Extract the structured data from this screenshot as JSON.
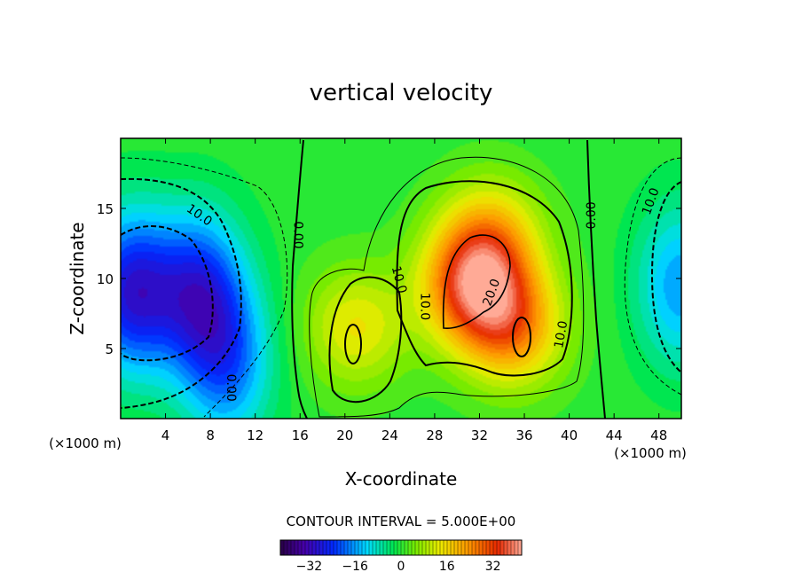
{
  "chart_data": {
    "type": "heatmap",
    "title": "vertical velocity",
    "xlabel": "X-coordinate",
    "ylabel": "Z-coordinate",
    "x_unit_left": "(×1000 m)",
    "x_unit_right": "(×1000 m)",
    "xlim": [
      0,
      50
    ],
    "ylim": [
      0,
      20
    ],
    "x_ticks": [
      {
        "value": 4,
        "label": "4"
      },
      {
        "value": 8,
        "label": "8"
      },
      {
        "value": 12,
        "label": "12"
      },
      {
        "value": 16,
        "label": "16"
      },
      {
        "value": 20,
        "label": "20"
      },
      {
        "value": 24,
        "label": "24"
      },
      {
        "value": 28,
        "label": "28"
      },
      {
        "value": 32,
        "label": "32"
      },
      {
        "value": 36,
        "label": "36"
      },
      {
        "value": 40,
        "label": "40"
      },
      {
        "value": 44,
        "label": "44"
      },
      {
        "value": 48,
        "label": "48"
      }
    ],
    "y_ticks": [
      {
        "value": 5,
        "label": "5"
      },
      {
        "value": 10,
        "label": "10"
      },
      {
        "value": 15,
        "label": "15"
      }
    ],
    "contour_interval_text": "CONTOUR INTERVAL = 5.000E+00",
    "colorbar": {
      "min": -42,
      "max": 42,
      "ticks": [
        {
          "value": -32,
          "label": "−32"
        },
        {
          "value": -16,
          "label": "−16"
        },
        {
          "value": 0,
          "label": "0"
        },
        {
          "value": 16,
          "label": "16"
        },
        {
          "value": 32,
          "label": "32"
        }
      ]
    },
    "features": [
      {
        "kind": "downdraft",
        "x": 1,
        "z": 9,
        "peak": -28
      },
      {
        "kind": "downdraft",
        "x": 7,
        "z": 9,
        "peak": -24
      },
      {
        "kind": "downdraft",
        "x": 9.5,
        "z": 4,
        "peak": -18
      },
      {
        "kind": "downdraft",
        "x": 50,
        "z": 9.5,
        "peak": -16
      },
      {
        "kind": "updraft",
        "x": 31.5,
        "z": 9.5,
        "peak": 32
      },
      {
        "kind": "updraft",
        "x": 35,
        "z": 6.5,
        "peak": 22
      },
      {
        "kind": "updraft",
        "x": 21,
        "z": 6.5,
        "peak": 14
      },
      {
        "kind": "updraft",
        "x": 33,
        "z": 13,
        "peak": 16
      }
    ],
    "contour_labels": [
      {
        "text": "10.0",
        "x": 7,
        "z": 14.5,
        "angle": 35
      },
      {
        "text": "0.00",
        "x": 15.8,
        "z": 13.1,
        "angle": 90
      },
      {
        "text": "10.0",
        "x": 24.8,
        "z": 9.9,
        "angle": 75
      },
      {
        "text": "10.0",
        "x": 27.1,
        "z": 8,
        "angle": 90
      },
      {
        "text": "20.0",
        "x": 33.1,
        "z": 9,
        "angle": -70
      },
      {
        "text": "10.0",
        "x": 39.3,
        "z": 6,
        "angle": -80
      },
      {
        "text": "0.00",
        "x": 42,
        "z": 14.5,
        "angle": -90
      },
      {
        "text": "10.0",
        "x": 47.3,
        "z": 15.5,
        "angle": -70
      },
      {
        "text": "0.00",
        "x": 9.8,
        "z": 2.2,
        "angle": 90
      }
    ]
  }
}
